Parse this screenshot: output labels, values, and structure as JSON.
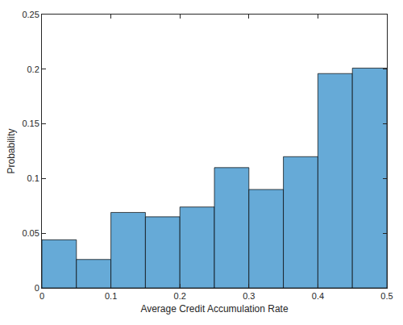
{
  "chart_data": {
    "type": "histogram",
    "x_label": "Average Credit Accumulation Rate",
    "y_label": "Probability",
    "bins": [
      0,
      0.05,
      0.1,
      0.15,
      0.2,
      0.25,
      0.3,
      0.35,
      0.4,
      0.45,
      0.5
    ],
    "values": [
      0.044,
      0.026,
      0.069,
      0.065,
      0.074,
      0.11,
      0.09,
      0.12,
      0.196,
      0.201
    ],
    "color": "#66aad7",
    "xlim": [
      0,
      0.5
    ],
    "xticks": [
      0,
      0.1,
      0.2,
      0.3,
      0.4,
      0.5
    ],
    "ylim": [
      0,
      0.25
    ],
    "yticks": [
      0,
      0.05,
      0.1,
      0.15,
      0.2,
      0.25
    ],
    "grid": false
  }
}
